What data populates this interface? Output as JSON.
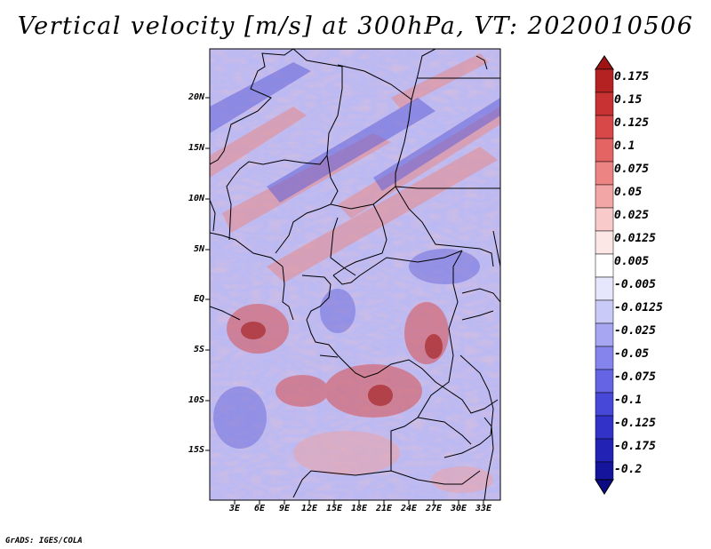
{
  "title": "Vertical velocity [m/s] at 300hPa, VT: 2020010506",
  "footer": "GrADS: IGES/COLA",
  "map": {
    "lat_labels": [
      "20N",
      "15N",
      "10N",
      "5N",
      "EQ",
      "5S",
      "10S",
      "15S"
    ],
    "lon_labels": [
      "3E",
      "6E",
      "9E",
      "12E",
      "15E",
      "18E",
      "21E",
      "24E",
      "27E",
      "30E",
      "33E"
    ]
  },
  "colorbar": {
    "labels": [
      "0.175",
      "0.15",
      "0.125",
      "0.1",
      "0.075",
      "0.05",
      "0.025",
      "0.0125",
      "0.005",
      "-0.005",
      "-0.0125",
      "-0.025",
      "-0.05",
      "-0.075",
      "-0.1",
      "-0.125",
      "-0.175",
      "-0.2"
    ],
    "colors": [
      "#a01414",
      "#b42222",
      "#c83232",
      "#d84848",
      "#e46464",
      "#ec8484",
      "#f2a6a6",
      "#f8caca",
      "#fce6e6",
      "#ffffff",
      "#e6e6fc",
      "#cacaf8",
      "#a6a6f2",
      "#8484ec",
      "#6464e4",
      "#4848d8",
      "#3232c8",
      "#2222b4",
      "#14149c",
      "#0a0a82"
    ]
  }
}
